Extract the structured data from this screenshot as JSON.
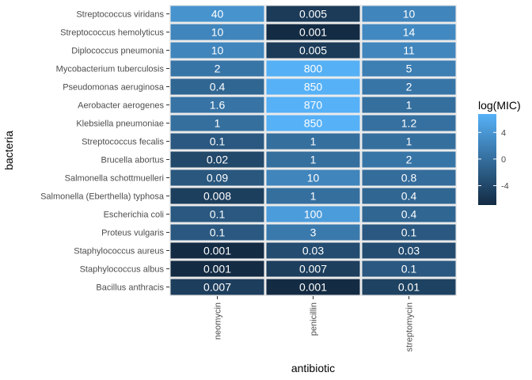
{
  "chart_data": {
    "type": "heatmap",
    "title": "",
    "xlabel": "antibiotic",
    "ylabel": "bacteria",
    "x_categories": [
      "neomycin",
      "penicillin",
      "streptomycin"
    ],
    "y_categories": [
      "Streptococcus viridans",
      "Streptococcus hemolyticus",
      "Diplococcus pneumonia",
      "Mycobacterium tuberculosis",
      "Pseudomonas aeruginosa",
      "Aerobacter aerogenes",
      "Klebsiella pneumoniae",
      "Streptococcus fecalis",
      "Brucella abortus",
      "Salmonella schottmuelleri",
      "Salmonella (Eberthella) typhosa",
      "Escherichia coli",
      "Proteus vulgaris",
      "Staphylococcus aureus",
      "Staphylococcus albus",
      "Bacillus anthracis"
    ],
    "values": [
      [
        "40",
        "0.005",
        "10"
      ],
      [
        "10",
        "0.001",
        "14"
      ],
      [
        "10",
        "0.005",
        "11"
      ],
      [
        "2",
        "800",
        "5"
      ],
      [
        "0.4",
        "850",
        "2"
      ],
      [
        "1.6",
        "870",
        "1"
      ],
      [
        "1",
        "850",
        "1.2"
      ],
      [
        "0.1",
        "1",
        "1"
      ],
      [
        "0.02",
        "1",
        "2"
      ],
      [
        "0.09",
        "10",
        "0.8"
      ],
      [
        "0.008",
        "1",
        "0.4"
      ],
      [
        "0.1",
        "100",
        "0.4"
      ],
      [
        "0.1",
        "3",
        "0.1"
      ],
      [
        "0.001",
        "0.03",
        "0.03"
      ],
      [
        "0.001",
        "0.007",
        "0.1"
      ],
      [
        "0.007",
        "0.001",
        "0.01"
      ]
    ],
    "fill_variable": "log(MIC)",
    "color_scale": {
      "low": "#132b43",
      "high": "#56b1f7",
      "domain": [
        -6.908,
        6.768
      ]
    },
    "legend": {
      "title": "log(MIC)",
      "ticks": [
        "4",
        "0",
        "-4"
      ],
      "tick_values": [
        4,
        0,
        -4
      ],
      "position": "right"
    },
    "panel_background": "#ebebeb",
    "grid": true
  }
}
